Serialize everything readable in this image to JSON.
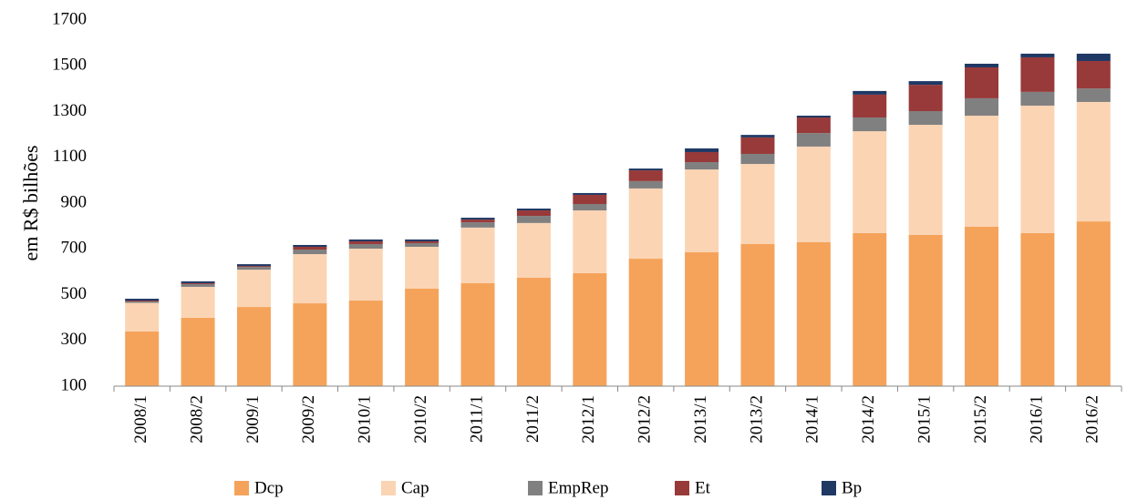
{
  "chart_data": {
    "type": "stacked_bar",
    "y_label": "em R$ bilhões",
    "categories": [
      "2008/1",
      "2008/2",
      "2009/1",
      "2009/2",
      "2010/1",
      "2010/2",
      "2011/1",
      "2011/2",
      "2012/1",
      "2012/2",
      "2013/1",
      "2013/2",
      "2014/1",
      "2014/2",
      "2015/1",
      "2015/2",
      "2016/1",
      "2016/2"
    ],
    "series": [
      {
        "name": "Dcp",
        "color": "#f5a35a",
        "values": [
          339,
          399,
          446,
          462,
          474,
          526,
          550,
          574,
          594,
          657,
          685,
          721,
          729,
          769,
          761,
          797,
          769,
          820
        ]
      },
      {
        "name": "Cap",
        "color": "#fbd4b4",
        "values": [
          125,
          135,
          163,
          215,
          227,
          183,
          243,
          239,
          274,
          307,
          362,
          350,
          418,
          445,
          481,
          485,
          557,
          522
        ]
      },
      {
        "name": "EmpRep",
        "color": "#808080",
        "values": [
          6,
          12,
          12,
          20,
          20,
          16,
          23,
          31,
          28,
          32,
          32,
          44,
          59,
          60,
          60,
          76,
          60,
          59
        ]
      },
      {
        "name": "Et",
        "color": "#983a3a",
        "values": [
          4,
          4,
          4,
          12,
          12,
          8,
          12,
          24,
          40,
          47,
          44,
          72,
          68,
          100,
          115,
          135,
          151,
          120
        ]
      },
      {
        "name": "Bp",
        "color": "#1f3864",
        "values": [
          8,
          8,
          8,
          8,
          8,
          8,
          8,
          8,
          8,
          8,
          16,
          11,
          8,
          16,
          16,
          16,
          16,
          32
        ]
      }
    ],
    "ylim": [
      100,
      1700
    ],
    "yticks": [
      100,
      300,
      500,
      700,
      900,
      1100,
      1300,
      1500,
      1700
    ],
    "legend": "bottom"
  }
}
